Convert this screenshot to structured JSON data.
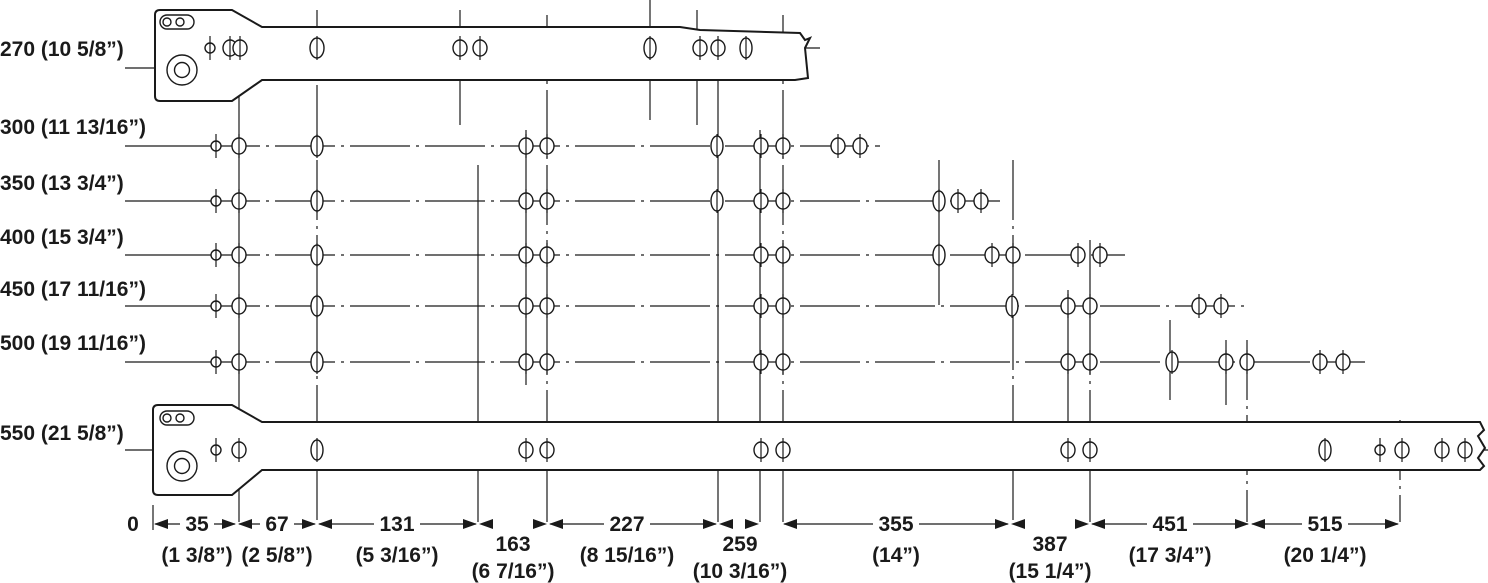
{
  "rows": [
    {
      "label": "270 (10 5/8”)"
    },
    {
      "label": "300 (11 13/16”)"
    },
    {
      "label": "350 (13 3/4”)"
    },
    {
      "label": "400 (15 3/4”)"
    },
    {
      "label": "450 (17 11/16”)"
    },
    {
      "label": "500 (19 11/16”)"
    },
    {
      "label": "550 (21 5/8”)"
    }
  ],
  "dimensions": [
    {
      "mm": "0",
      "inch": ""
    },
    {
      "mm": "35",
      "inch": "(1 3/8”)"
    },
    {
      "mm": "67",
      "inch": "(2 5/8”)"
    },
    {
      "mm": "131",
      "inch": "(5 3/16”)"
    },
    {
      "mm": "163",
      "inch": "(6 7/16”)"
    },
    {
      "mm": "227",
      "inch": "(8 15/16”)"
    },
    {
      "mm": "259",
      "inch": "(10 3/16”)"
    },
    {
      "mm": "355",
      "inch": "(14”)"
    },
    {
      "mm": "387",
      "inch": "(15 1/4”)"
    },
    {
      "mm": "451",
      "inch": "(17 3/4”)"
    },
    {
      "mm": "515",
      "inch": "(20 1/4”)"
    }
  ],
  "colors": {
    "ink": "#1a1a1a",
    "background": "#ffffff"
  }
}
